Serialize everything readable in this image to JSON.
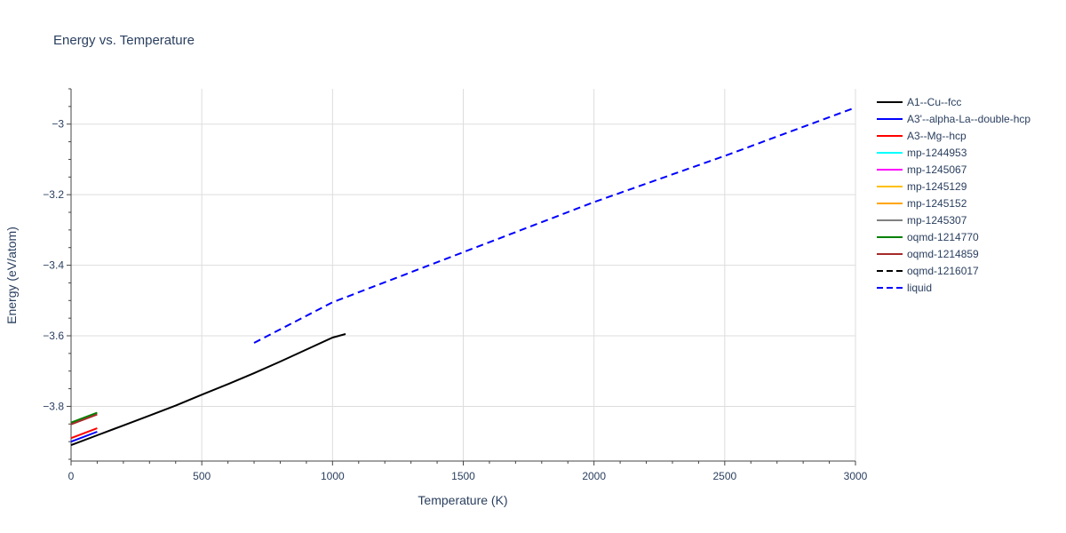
{
  "chart_data": {
    "type": "line",
    "title": "Energy vs. Temperature",
    "xlabel": "Temperature (K)",
    "ylabel": "Energy (eV/atom)",
    "xlim": [
      0,
      3000
    ],
    "ylim": [
      -3.955,
      -2.9
    ],
    "xticks": [
      0,
      500,
      1000,
      1500,
      2000,
      2500,
      3000
    ],
    "xtick_labels": [
      "0",
      "500",
      "1000",
      "1500",
      "2000",
      "2500",
      "3000"
    ],
    "yticks": [
      -3.8,
      -3.6,
      -3.4,
      -3.2,
      -3.0
    ],
    "ytick_labels": [
      "−3.8",
      "−3.6",
      "−3.4",
      "−3.2",
      "−3"
    ],
    "grid": true,
    "legend_position": "right",
    "series": [
      {
        "name": "A1--Cu--fcc",
        "color": "#000000",
        "dash": "solid",
        "x": [
          0,
          100,
          200,
          300,
          400,
          500,
          600,
          700,
          800,
          900,
          1000,
          1050
        ],
        "y": [
          -3.91,
          -3.882,
          -3.854,
          -3.826,
          -3.798,
          -3.767,
          -3.737,
          -3.706,
          -3.673,
          -3.639,
          -3.605,
          -3.595
        ]
      },
      {
        "name": "A3'--alpha-La--double-hcp",
        "color": "#0000ff",
        "dash": "solid",
        "x": [
          0,
          100
        ],
        "y": [
          -3.9,
          -3.872
        ]
      },
      {
        "name": "A3--Mg--hcp",
        "color": "#ff0000",
        "dash": "solid",
        "x": [
          0,
          100
        ],
        "y": [
          -3.89,
          -3.862
        ]
      },
      {
        "name": "mp-1244953",
        "color": "#00ffff",
        "dash": "solid",
        "x": [],
        "y": []
      },
      {
        "name": "mp-1245067",
        "color": "#ff00ff",
        "dash": "solid",
        "x": [],
        "y": []
      },
      {
        "name": "mp-1245129",
        "color": "#ffbf00",
        "dash": "solid",
        "x": [],
        "y": []
      },
      {
        "name": "mp-1245152",
        "color": "#ffa500",
        "dash": "solid",
        "x": [],
        "y": []
      },
      {
        "name": "mp-1245307",
        "color": "#808080",
        "dash": "solid",
        "x": [],
        "y": []
      },
      {
        "name": "oqmd-1214770",
        "color": "#008000",
        "dash": "solid",
        "x": [
          0,
          100
        ],
        "y": [
          -3.846,
          -3.818
        ]
      },
      {
        "name": "oqmd-1214859",
        "color": "#a52a2a",
        "dash": "solid",
        "x": [
          0,
          100
        ],
        "y": [
          -3.851,
          -3.823
        ]
      },
      {
        "name": "oqmd-1216017",
        "color": "#000000",
        "dash": "dash",
        "x": [],
        "y": []
      },
      {
        "name": "liquid",
        "color": "#0000ff",
        "dash": "dash",
        "x": [
          700,
          1000,
          1500,
          2000,
          2500,
          3000
        ],
        "y": [
          -3.62,
          -3.505,
          -3.363,
          -3.221,
          -3.09,
          -2.953
        ]
      }
    ]
  }
}
